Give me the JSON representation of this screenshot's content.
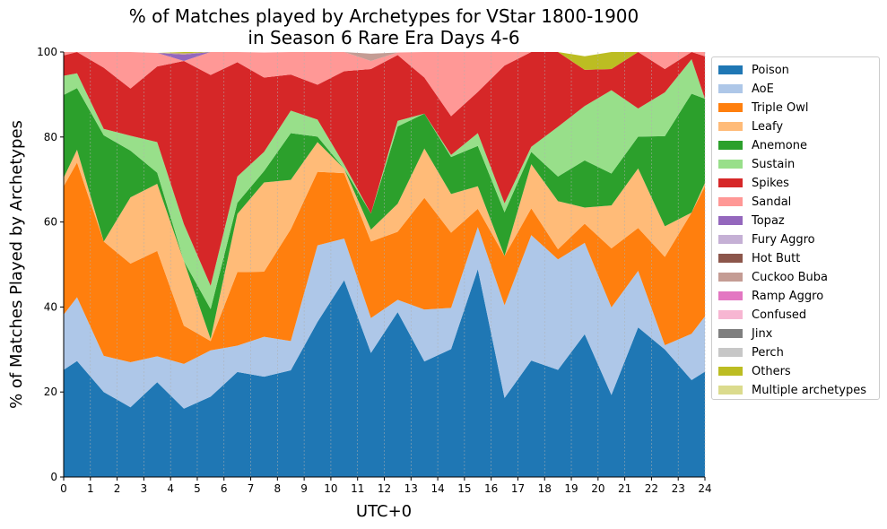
{
  "chart_data": {
    "type": "area",
    "stacked": true,
    "title": "% of Matches played by Archetypes for VStar 1800-1900\nin Season 6 Rare Era Days 4-6",
    "title_lines": [
      "% of Matches played by Archetypes for VStar 1800-1900",
      "in Season 6 Rare Era Days 4-6"
    ],
    "xlabel": "UTC+0",
    "ylabel": "% of Matches Played by Archetypes",
    "xlim": [
      0,
      24
    ],
    "ylim": [
      0,
      100
    ],
    "xticks": [
      0,
      1,
      2,
      3,
      4,
      5,
      6,
      7,
      8,
      9,
      10,
      11,
      12,
      13,
      14,
      15,
      16,
      17,
      18,
      19,
      20,
      21,
      22,
      23,
      24
    ],
    "yticks": [
      0,
      20,
      40,
      60,
      80,
      100
    ],
    "vertical_grid": true,
    "legend_position": "outside-right",
    "x": [
      0,
      0.5,
      1.5,
      2.5,
      3.5,
      4.5,
      5.5,
      6.5,
      7.5,
      8.5,
      9.5,
      10.5,
      11.5,
      12.5,
      13.5,
      14.5,
      15.5,
      16.5,
      17.5,
      18.5,
      19.5,
      20.5,
      21.5,
      22.5,
      23.5,
      24
    ],
    "series": [
      {
        "name": "Poison",
        "color": "#1f77b4",
        "values": [
          25.2,
          27.3,
          20,
          16.4,
          22.3,
          16.1,
          18.9,
          24.7,
          23.6,
          25.1,
          36.5,
          46.3,
          29.2,
          38.8,
          27.2,
          30.1,
          48.9,
          18.6,
          27.4,
          25.2,
          33.6,
          19.3,
          35.2,
          30,
          22.8,
          24.8
        ]
      },
      {
        "name": "AoE",
        "color": "#aec7e8",
        "values": [
          13,
          15,
          8.5,
          10.6,
          6.1,
          10.5,
          10.9,
          6.2,
          9.4,
          6.9,
          18,
          9.8,
          8.2,
          2.9,
          12.2,
          9.7,
          9.9,
          21.8,
          29.5,
          26,
          21.5,
          20.6,
          13.3,
          1,
          10.9,
          13
        ]
      },
      {
        "name": "Triple Owl",
        "color": "#ff7f0e",
        "values": [
          30.2,
          31.7,
          26.9,
          23.2,
          24.8,
          9,
          2.2,
          17.3,
          15.3,
          26.3,
          17.3,
          15.4,
          18,
          16,
          26.3,
          17.7,
          4.3,
          11.6,
          6.3,
          2.4,
          4.5,
          13.9,
          10.1,
          20.8,
          28.5,
          30.6
        ]
      },
      {
        "name": "Leafy",
        "color": "#ffbb78",
        "values": [
          2,
          3,
          0,
          15.6,
          15.8,
          15.2,
          0.5,
          13.7,
          21,
          11.6,
          7,
          1,
          2.8,
          6.6,
          11.6,
          9.1,
          5.3,
          0,
          10.4,
          11.3,
          3.8,
          10.1,
          14,
          7.2,
          0,
          0.8
        ]
      },
      {
        "name": "Anemone",
        "color": "#2ca02c",
        "values": [
          19.5,
          14.5,
          25,
          11,
          2.6,
          0,
          7,
          2.6,
          2.7,
          11,
          1.3,
          0,
          3.8,
          18.2,
          8.2,
          8.7,
          9.5,
          10.3,
          2.9,
          5.8,
          11.1,
          7.5,
          7.5,
          21.2,
          28,
          19.8
        ]
      },
      {
        "name": "Sustain",
        "color": "#98df8a",
        "values": [
          4.5,
          3.5,
          1.5,
          3.5,
          7.2,
          8.7,
          5.5,
          6.2,
          4.5,
          5.3,
          4,
          1,
          0,
          1.3,
          0,
          0.5,
          3,
          2.1,
          1.2,
          11.7,
          12.8,
          19.6,
          6.6,
          10.3,
          8.1,
          0
        ]
      },
      {
        "name": "Spikes",
        "color": "#d62728",
        "values": [
          4.8,
          5,
          14.4,
          11.1,
          17.8,
          38.4,
          49.6,
          26.9,
          17.5,
          8.5,
          8.2,
          22,
          34,
          15.5,
          8.5,
          9.1,
          9.7,
          32.4,
          22.3,
          17.6,
          8.5,
          5,
          13.3,
          5.5,
          1.7,
          10
        ]
      },
      {
        "name": "Sandal",
        "color": "#ff9896",
        "values": [
          0.8,
          0,
          3.7,
          8.6,
          3.2,
          0,
          5.4,
          2.4,
          5.9,
          5.8,
          7.7,
          4.5,
          1.9,
          0.6,
          6,
          15.1,
          9.4,
          3.2,
          0,
          0,
          0,
          0,
          0,
          4,
          0,
          1
        ]
      },
      {
        "name": "Topaz",
        "color": "#9467bd",
        "values": [
          0,
          0,
          0,
          0,
          0,
          1.5,
          0,
          0,
          0,
          0,
          0,
          0,
          0,
          0,
          0,
          0,
          0,
          0,
          0,
          0,
          0,
          0,
          0,
          0,
          0,
          0
        ]
      },
      {
        "name": "Fury Aggro",
        "color": "#c5b0d5",
        "values": [
          0,
          0,
          0,
          0,
          0,
          0,
          0,
          0,
          0,
          0,
          0,
          0,
          0,
          0,
          0,
          0,
          0,
          0,
          0,
          0,
          0,
          0,
          0,
          0,
          0,
          0
        ]
      },
      {
        "name": "Hot Butt",
        "color": "#8c564b",
        "values": [
          0,
          0,
          0,
          0,
          0,
          0,
          0,
          0,
          0,
          0,
          0,
          0,
          0,
          0,
          0,
          0,
          0,
          0,
          0,
          0,
          0,
          0,
          0,
          0,
          0,
          0
        ]
      },
      {
        "name": "Cuckoo Buba",
        "color": "#c49c94",
        "values": [
          0,
          0,
          0,
          0,
          0,
          0.3,
          0,
          0,
          0,
          0,
          0,
          0,
          1.7,
          0,
          0,
          0,
          0,
          0,
          0,
          0,
          0,
          0,
          0,
          0,
          0,
          0
        ]
      },
      {
        "name": "Ramp Aggro",
        "color": "#e377c2",
        "values": [
          0,
          0,
          0,
          0,
          0,
          0,
          0,
          0,
          0,
          0,
          0,
          0,
          0,
          0,
          0,
          0,
          0,
          0,
          0,
          0,
          0,
          0,
          0,
          0,
          0,
          0
        ]
      },
      {
        "name": "Confused",
        "color": "#f7b6d2",
        "values": [
          0,
          0,
          0,
          0,
          0,
          0,
          0,
          0,
          0,
          0,
          0,
          0,
          0,
          0,
          0,
          0,
          0,
          0,
          0,
          0,
          0,
          0,
          0,
          0,
          0,
          0
        ]
      },
      {
        "name": "Jinx",
        "color": "#7f7f7f",
        "values": [
          0,
          0,
          0,
          0,
          0,
          0,
          0,
          0,
          0,
          0,
          0,
          0,
          0,
          0,
          0,
          0,
          0,
          0,
          0,
          0,
          0,
          0,
          0,
          0,
          0,
          0
        ]
      },
      {
        "name": "Perch",
        "color": "#c7c7c7",
        "values": [
          0,
          0,
          0,
          0,
          0,
          0,
          0,
          0,
          0,
          0,
          0,
          0,
          0,
          0,
          0,
          0,
          0,
          0,
          0,
          0,
          0,
          0,
          0,
          0,
          0,
          0
        ]
      },
      {
        "name": "Others",
        "color": "#bcbd22",
        "values": [
          0,
          0,
          0,
          0,
          0,
          0.3,
          0,
          0,
          0,
          0,
          0,
          0,
          0,
          0,
          0,
          0,
          0,
          0,
          0,
          0,
          3.2,
          4,
          0,
          0,
          0,
          0
        ]
      },
      {
        "name": "Multiple archetypes",
        "color": "#dbdb8d",
        "values": [
          0,
          0,
          0,
          0,
          0,
          0,
          0,
          0,
          0,
          0,
          0,
          0,
          0,
          0,
          0,
          0,
          0,
          0,
          0,
          0,
          0,
          0,
          0,
          0,
          0,
          0
        ]
      }
    ]
  }
}
